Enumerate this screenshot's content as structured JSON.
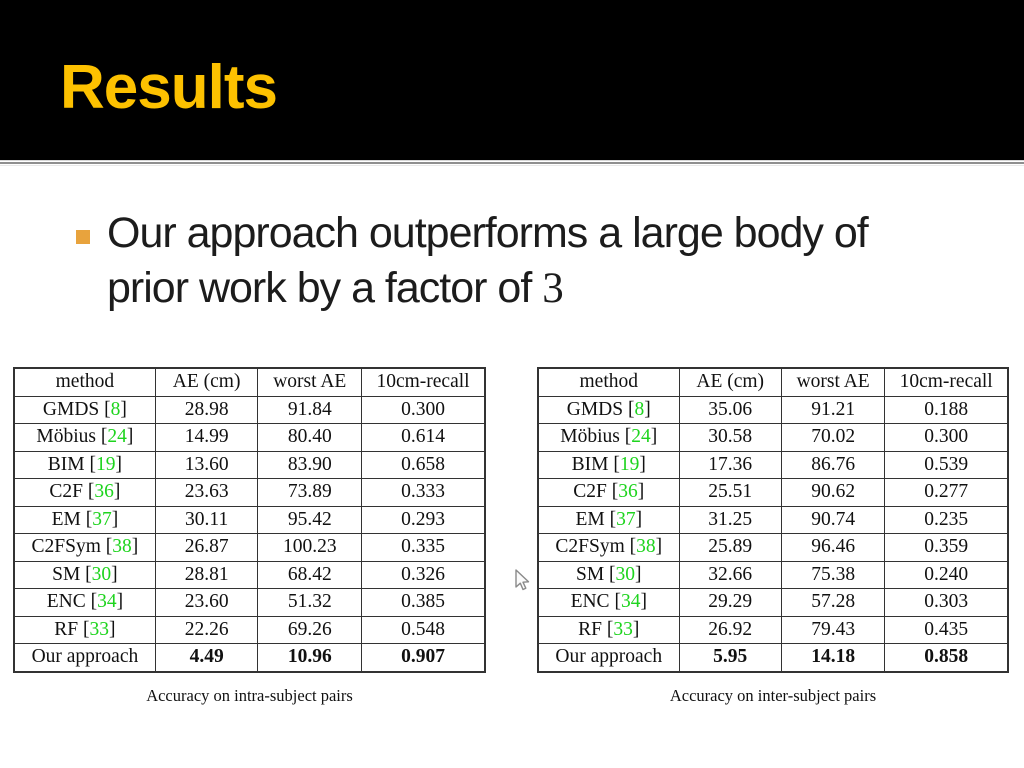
{
  "slide_title": "Results",
  "bullet": {
    "line1": "Our approach outperforms a large body of",
    "line2": "prior work by a factor of ",
    "factor": "3"
  },
  "colors": {
    "header_bg": "#000000",
    "title_gold": "#FDC100",
    "bullet_square": "#E8A33D",
    "citation_green": "#1ED41E"
  },
  "icons": {
    "bullet": "square-bullet-icon",
    "cursor": "arrow-pointer-icon"
  },
  "tables": [
    {
      "id": "intra",
      "caption": "Accuracy on intra-subject pairs",
      "columns": [
        "method",
        "AE (cm)",
        "worst AE",
        "10cm-recall"
      ],
      "rows": [
        {
          "method": "GMDS",
          "cite": "8",
          "values": [
            "28.98",
            "91.84",
            "0.300"
          ],
          "bold": false
        },
        {
          "method": "Möbius",
          "cite": "24",
          "values": [
            "14.99",
            "80.40",
            "0.614"
          ],
          "bold": false
        },
        {
          "method": "BIM",
          "cite": "19",
          "values": [
            "13.60",
            "83.90",
            "0.658"
          ],
          "bold": false
        },
        {
          "method": "C2F",
          "cite": "36",
          "values": [
            "23.63",
            "73.89",
            "0.333"
          ],
          "bold": false
        },
        {
          "method": "EM",
          "cite": "37",
          "values": [
            "30.11",
            "95.42",
            "0.293"
          ],
          "bold": false
        },
        {
          "method": "C2FSym",
          "cite": "38",
          "values": [
            "26.87",
            "100.23",
            "0.335"
          ],
          "bold": false
        },
        {
          "method": "SM",
          "cite": "30",
          "values": [
            "28.81",
            "68.42",
            "0.326"
          ],
          "bold": false
        },
        {
          "method": "ENC",
          "cite": "34",
          "values": [
            "23.60",
            "51.32",
            "0.385"
          ],
          "bold": false
        },
        {
          "method": "RF",
          "cite": "33",
          "values": [
            "22.26",
            "69.26",
            "0.548"
          ],
          "bold": false
        },
        {
          "method": "Our approach",
          "cite": "",
          "values": [
            "4.49",
            "10.96",
            "0.907"
          ],
          "bold": true
        }
      ]
    },
    {
      "id": "inter",
      "caption": "Accuracy on inter-subject pairs",
      "columns": [
        "method",
        "AE (cm)",
        "worst AE",
        "10cm-recall"
      ],
      "rows": [
        {
          "method": "GMDS",
          "cite": "8",
          "values": [
            "35.06",
            "91.21",
            "0.188"
          ],
          "bold": false
        },
        {
          "method": "Möbius",
          "cite": "24",
          "values": [
            "30.58",
            "70.02",
            "0.300"
          ],
          "bold": false
        },
        {
          "method": "BIM",
          "cite": "19",
          "values": [
            "17.36",
            "86.76",
            "0.539"
          ],
          "bold": false
        },
        {
          "method": "C2F",
          "cite": "36",
          "values": [
            "25.51",
            "90.62",
            "0.277"
          ],
          "bold": false
        },
        {
          "method": "EM",
          "cite": "37",
          "values": [
            "31.25",
            "90.74",
            "0.235"
          ],
          "bold": false
        },
        {
          "method": "C2FSym",
          "cite": "38",
          "values": [
            "25.89",
            "96.46",
            "0.359"
          ],
          "bold": false
        },
        {
          "method": "SM",
          "cite": "30",
          "values": [
            "32.66",
            "75.38",
            "0.240"
          ],
          "bold": false
        },
        {
          "method": "ENC",
          "cite": "34",
          "values": [
            "29.29",
            "57.28",
            "0.303"
          ],
          "bold": false
        },
        {
          "method": "RF",
          "cite": "33",
          "values": [
            "26.92",
            "79.43",
            "0.435"
          ],
          "bold": false
        },
        {
          "method": "Our approach",
          "cite": "",
          "values": [
            "5.95",
            "14.18",
            "0.858"
          ],
          "bold": true
        }
      ]
    }
  ]
}
